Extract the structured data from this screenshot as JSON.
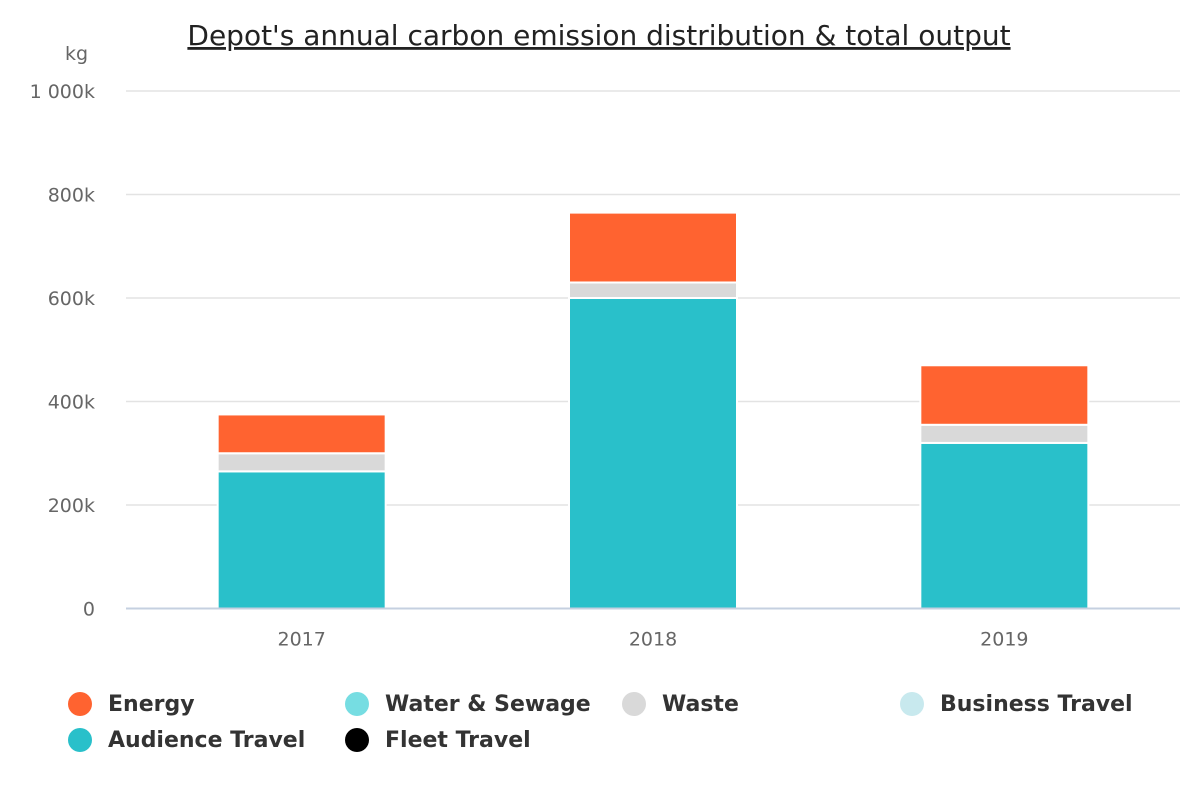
{
  "chart_data": {
    "type": "bar",
    "stacked": true,
    "title": "Depot's annual carbon emission distribution & total output",
    "ylabel": "kg",
    "xlabel": "",
    "categories": [
      "2017",
      "2018",
      "2019"
    ],
    "ylim": [
      0,
      1000000
    ],
    "y_ticks": [
      {
        "value": 0,
        "label": "0"
      },
      {
        "value": 200000,
        "label": "200k"
      },
      {
        "value": 400000,
        "label": "400k"
      },
      {
        "value": 600000,
        "label": "600k"
      },
      {
        "value": 800000,
        "label": "800k"
      },
      {
        "value": 1000000,
        "label": "1 000k"
      }
    ],
    "grid": true,
    "legend_position": "bottom",
    "series": [
      {
        "name": "Energy",
        "color": "#ff6330",
        "values": [
          75000,
          135000,
          115000
        ]
      },
      {
        "name": "Water & Sewage",
        "color": "#76dde2",
        "values": [
          0,
          0,
          0
        ]
      },
      {
        "name": "Waste",
        "color": "#d9d9d9",
        "values": [
          35000,
          30000,
          35000
        ]
      },
      {
        "name": "Business Travel",
        "color": "#c8e9ee",
        "values": [
          0,
          0,
          0
        ]
      },
      {
        "name": "Audience Travel",
        "color": "#29c0ca",
        "values": [
          265000,
          600000,
          320000
        ]
      },
      {
        "name": "Fleet Travel",
        "color": "#000000",
        "values": [
          0,
          0,
          0
        ]
      }
    ]
  }
}
